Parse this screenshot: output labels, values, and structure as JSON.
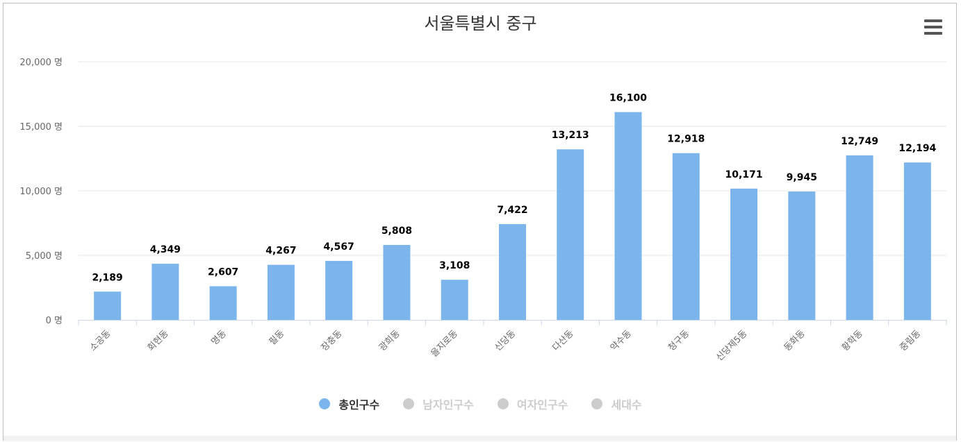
{
  "chart_data": {
    "type": "bar",
    "title": "서울특별시 중구",
    "categories": [
      "소공동",
      "회현동",
      "명동",
      "필동",
      "장충동",
      "광희동",
      "을지로동",
      "신당동",
      "다산동",
      "약수동",
      "청구동",
      "신당제5동",
      "동화동",
      "황학동",
      "중림동"
    ],
    "series": [
      {
        "name": "총인구수",
        "values": [
          2189,
          4349,
          2607,
          4267,
          4567,
          5808,
          3108,
          7422,
          13213,
          16100,
          12918,
          10171,
          9945,
          12749,
          12194
        ]
      }
    ],
    "value_labels": [
      "2,189",
      "4,349",
      "2,607",
      "4,267",
      "4,567",
      "5,808",
      "3,108",
      "7,422",
      "13,213",
      "16,100",
      "12,918",
      "10,171",
      "9,945",
      "12,749",
      "12,194"
    ],
    "ylim": [
      0,
      20000
    ],
    "yticks": [
      0,
      5000,
      10000,
      15000,
      20000
    ],
    "ytick_labels": [
      "0 명",
      "5,000 명",
      "10,000 명",
      "15,000 명",
      "20,000 명"
    ],
    "xlabel": "",
    "ylabel": "",
    "grid": true,
    "bar_color": "#7cb5ec"
  },
  "legend": [
    {
      "label": "총인구수",
      "active": true,
      "color": "#7cb5ec",
      "text_color": "#333333"
    },
    {
      "label": "남자인구수",
      "active": false,
      "color": "#cccccc",
      "text_color": "#cccccc"
    },
    {
      "label": "여자인구수",
      "active": false,
      "color": "#cccccc",
      "text_color": "#cccccc"
    },
    {
      "label": "세대수",
      "active": false,
      "color": "#cccccc",
      "text_color": "#cccccc"
    }
  ],
  "menu": {
    "icon": "hamburger-menu-icon"
  }
}
